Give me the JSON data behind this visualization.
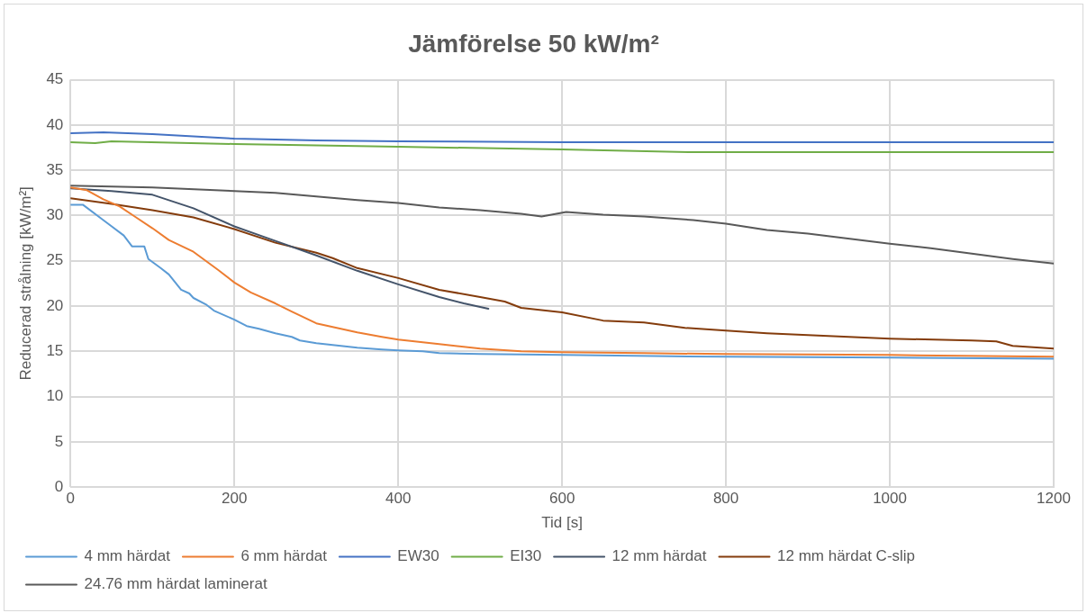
{
  "chart_data": {
    "type": "line",
    "title": "Jämförelse 50 kW/m²",
    "xlabel": "Tid [s]",
    "ylabel": "Reducerad strålning [kW/m²]",
    "xlim": [
      0,
      1200
    ],
    "xticks": [
      0,
      200,
      400,
      600,
      800,
      1000,
      1200
    ],
    "ylim": [
      0,
      45
    ],
    "yticks": [
      0,
      5,
      10,
      15,
      20,
      25,
      30,
      35,
      40,
      45
    ],
    "grid": true,
    "legend": "bottom",
    "marker": "none",
    "line_style": "solid",
    "series": [
      {
        "name": "4 mm härdat",
        "color": "#5b9bd5",
        "x": [
          0,
          15,
          40,
          65,
          75,
          90,
          95,
          110,
          120,
          135,
          145,
          150,
          165,
          175,
          200,
          215,
          230,
          250,
          270,
          280,
          300,
          320,
          350,
          380,
          400,
          430,
          450,
          500,
          600,
          800,
          1000,
          1200
        ],
        "values": [
          31.2,
          31.2,
          29.5,
          27.8,
          26.6,
          26.6,
          25.2,
          24.2,
          23.5,
          21.8,
          21.4,
          20.9,
          20.2,
          19.5,
          18.5,
          17.8,
          17.5,
          17,
          16.6,
          16.2,
          15.9,
          15.7,
          15.4,
          15.2,
          15.1,
          15,
          14.8,
          14.7,
          14.6,
          14.4,
          14.3,
          14.2
        ]
      },
      {
        "name": "6 mm härdat",
        "color": "#ed7d31",
        "x": [
          0,
          20,
          40,
          60,
          80,
          100,
          120,
          150,
          180,
          200,
          220,
          250,
          270,
          300,
          330,
          350,
          380,
          400,
          450,
          500,
          550,
          600,
          700,
          800,
          1000,
          1200
        ],
        "values": [
          33.1,
          32.8,
          31.8,
          31,
          29.8,
          28.6,
          27.3,
          26,
          24,
          22.6,
          21.5,
          20.3,
          19.4,
          18.1,
          17.5,
          17.1,
          16.6,
          16.3,
          15.8,
          15.3,
          15,
          14.9,
          14.8,
          14.7,
          14.6,
          14.4
        ]
      },
      {
        "name": "EW30",
        "color": "#4472c4",
        "x": [
          0,
          40,
          100,
          200,
          300,
          400,
          600,
          1200
        ],
        "values": [
          39.1,
          39.2,
          39,
          38.5,
          38.3,
          38.2,
          38.1,
          38.1
        ]
      },
      {
        "name": "EI30",
        "color": "#70ad47",
        "x": [
          0,
          30,
          50,
          200,
          400,
          600,
          760,
          1200
        ],
        "values": [
          38.1,
          38,
          38.2,
          37.9,
          37.6,
          37.3,
          37,
          37
        ]
      },
      {
        "name": "12 mm härdat",
        "color": "#44546a",
        "x": [
          0,
          50,
          100,
          150,
          200,
          250,
          300,
          350,
          400,
          450,
          480,
          510
        ],
        "values": [
          33,
          32.7,
          32.3,
          30.8,
          28.8,
          27.2,
          25.6,
          23.9,
          22.4,
          21,
          20.3,
          19.7
        ]
      },
      {
        "name": "12 mm härdat C-slip",
        "color": "#843c0c",
        "x": [
          0,
          50,
          100,
          150,
          200,
          250,
          300,
          320,
          350,
          400,
          450,
          500,
          530,
          550,
          600,
          650,
          700,
          750,
          800,
          850,
          900,
          1000,
          1100,
          1130,
          1150,
          1200
        ],
        "values": [
          31.9,
          31.3,
          30.6,
          29.8,
          28.5,
          27,
          25.9,
          25.3,
          24.2,
          23.1,
          21.8,
          21,
          20.5,
          19.8,
          19.3,
          18.4,
          18.2,
          17.6,
          17.3,
          17,
          16.8,
          16.4,
          16.2,
          16.1,
          15.6,
          15.3
        ]
      },
      {
        "name": "24.76 mm härdat laminerat",
        "color": "#595959",
        "x": [
          0,
          100,
          200,
          250,
          300,
          350,
          400,
          450,
          500,
          550,
          575,
          605,
          650,
          700,
          760,
          800,
          850,
          900,
          1000,
          1050,
          1100,
          1150,
          1200
        ],
        "values": [
          33.3,
          33.1,
          32.7,
          32.5,
          32.1,
          31.7,
          31.4,
          30.9,
          30.6,
          30.2,
          29.9,
          30.4,
          30.1,
          29.9,
          29.5,
          29.1,
          28.4,
          28,
          26.9,
          26.4,
          25.8,
          25.2,
          24.7
        ]
      }
    ]
  }
}
